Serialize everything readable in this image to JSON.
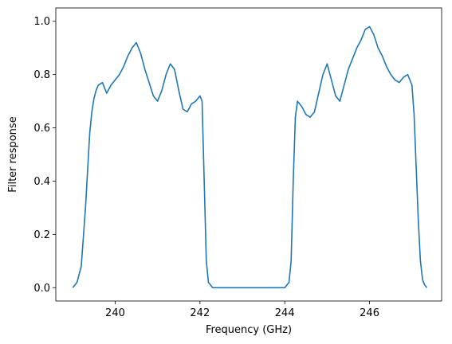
{
  "chart_data": {
    "type": "line",
    "title": "",
    "xlabel": "Frequency (GHz)",
    "ylabel": "Filter response",
    "xlim": [
      238.6,
      247.7
    ],
    "ylim": [
      -0.05,
      1.05
    ],
    "xticks": [
      240,
      242,
      244,
      246
    ],
    "xtick_labels": [
      "240",
      "242",
      "244",
      "246"
    ],
    "yticks": [
      0.0,
      0.2,
      0.4,
      0.6,
      0.8,
      1.0
    ],
    "ytick_labels": [
      "0.0",
      "0.2",
      "0.4",
      "0.6",
      "0.8",
      "1.0"
    ],
    "grid": false,
    "series": [
      {
        "color": "#1f77b4",
        "x": [
          239.0,
          239.1,
          239.2,
          239.3,
          239.4,
          239.45,
          239.5,
          239.55,
          239.6,
          239.7,
          239.8,
          239.9,
          240.0,
          240.1,
          240.2,
          240.3,
          240.4,
          240.5,
          240.6,
          240.7,
          240.8,
          240.9,
          241.0,
          241.1,
          241.2,
          241.3,
          241.4,
          241.5,
          241.6,
          241.7,
          241.8,
          241.9,
          242.0,
          242.05,
          242.1,
          242.15,
          242.2,
          242.3,
          242.4,
          242.6,
          243.0,
          243.5,
          244.0,
          244.1,
          244.15,
          244.2,
          244.25,
          244.3,
          244.4,
          244.5,
          244.6,
          244.7,
          244.8,
          244.9,
          245.0,
          245.1,
          245.2,
          245.3,
          245.4,
          245.5,
          245.6,
          245.7,
          245.8,
          245.9,
          246.0,
          246.1,
          246.2,
          246.3,
          246.4,
          246.5,
          246.6,
          246.7,
          246.8,
          246.9,
          247.0,
          247.05,
          247.1,
          247.15,
          247.2,
          247.25,
          247.3,
          247.35
        ],
        "y": [
          0.0,
          0.02,
          0.08,
          0.3,
          0.58,
          0.66,
          0.71,
          0.74,
          0.76,
          0.77,
          0.73,
          0.76,
          0.78,
          0.8,
          0.83,
          0.87,
          0.9,
          0.92,
          0.88,
          0.82,
          0.77,
          0.72,
          0.7,
          0.74,
          0.8,
          0.84,
          0.82,
          0.74,
          0.67,
          0.66,
          0.69,
          0.7,
          0.72,
          0.7,
          0.4,
          0.1,
          0.02,
          0.0,
          0.0,
          0.0,
          0.0,
          0.0,
          0.0,
          0.02,
          0.1,
          0.4,
          0.64,
          0.7,
          0.68,
          0.65,
          0.64,
          0.66,
          0.73,
          0.8,
          0.84,
          0.78,
          0.72,
          0.7,
          0.76,
          0.82,
          0.86,
          0.9,
          0.93,
          0.97,
          0.98,
          0.95,
          0.9,
          0.87,
          0.83,
          0.8,
          0.78,
          0.77,
          0.79,
          0.8,
          0.76,
          0.65,
          0.45,
          0.25,
          0.1,
          0.03,
          0.01,
          0.0
        ]
      }
    ]
  }
}
